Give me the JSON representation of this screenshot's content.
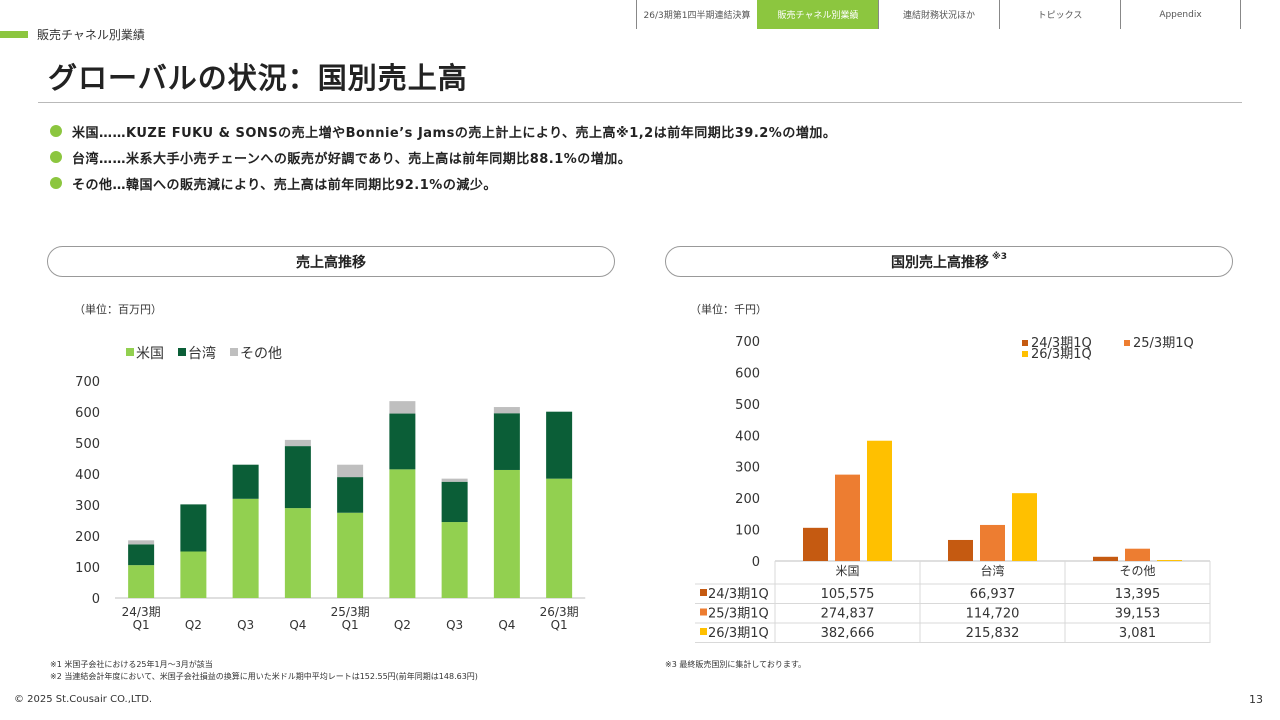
{
  "nav": {
    "tabs": [
      {
        "label": "26/3期第1四半期連結決算",
        "active": false
      },
      {
        "label": "販売チャネル別業績",
        "active": true
      },
      {
        "label": "連結財務状況ほか",
        "active": false
      },
      {
        "label": "トピックス",
        "active": false
      },
      {
        "label": "Appendix",
        "active": false
      }
    ]
  },
  "section_label": "販売チャネル別業績",
  "page_title": "グローバルの状況：国別売上高",
  "bullets": [
    "米国……KUZE FUKU & SONSの売上増やBonnie’s Jamsの売上計上により、売上高※1,2は前年同期比39.2%の増加。",
    "台湾……米系大手小売チェーンへの販売が好調であり、売上高は前年同期比88.1%の増加。",
    "その他…韓国への販売減により、売上高は前年同期比92.1%の減少。"
  ],
  "left_panel": {
    "title": "売上高推移",
    "unit": "（単位：百万円）"
  },
  "right_panel": {
    "title": "国別売上高推移",
    "title_note": "※3",
    "unit": "（単位：千円）"
  },
  "colors": {
    "accent": "#8cc63f",
    "us": "#92d050",
    "taiwan": "#0b5e37",
    "other": "#bfbfbf",
    "q24": "#c55a11",
    "q25": "#ed7d31",
    "q26": "#ffc000"
  },
  "chart_data": [
    {
      "type": "bar",
      "stacked": true,
      "categories": [
        [
          "24/3期",
          "Q1"
        ],
        [
          "",
          "Q2"
        ],
        [
          "",
          "Q3"
        ],
        [
          "",
          "Q4"
        ],
        [
          "25/3期",
          "Q1"
        ],
        [
          "",
          "Q2"
        ],
        [
          "",
          "Q3"
        ],
        [
          "",
          "Q4"
        ],
        [
          "26/3期",
          "Q1"
        ]
      ],
      "series": [
        {
          "name": "米国",
          "color": "#92d050",
          "values": [
            106,
            150,
            320,
            290,
            275,
            415,
            245,
            413,
            385
          ]
        },
        {
          "name": "台湾",
          "color": "#0b5e37",
          "values": [
            67,
            152,
            110,
            200,
            115,
            180,
            130,
            183,
            216
          ]
        },
        {
          "name": "その他",
          "color": "#bfbfbf",
          "values": [
            13,
            0,
            0,
            20,
            40,
            40,
            10,
            20,
            0
          ]
        }
      ],
      "ylim": [
        0,
        700
      ],
      "yticks": [
        0,
        100,
        200,
        300,
        400,
        500,
        600,
        700
      ],
      "legend_position": "top-left"
    },
    {
      "type": "bar",
      "categories": [
        "米国",
        "台湾",
        "その他"
      ],
      "series": [
        {
          "name": "24/3期1Q",
          "color": "#c55a11",
          "values": [
            105575,
            66937,
            13395
          ],
          "labels": [
            "105,575",
            "66,937",
            "13,395"
          ]
        },
        {
          "name": "25/3期1Q",
          "color": "#ed7d31",
          "values": [
            274837,
            114720,
            39153
          ],
          "labels": [
            "274,837",
            "114,720",
            "39,153"
          ]
        },
        {
          "name": "26/3期1Q",
          "color": "#ffc000",
          "values": [
            382666,
            215832,
            3081
          ],
          "labels": [
            "382,666",
            "215,832",
            "3,081"
          ]
        }
      ],
      "ylim": [
        0,
        700
      ],
      "yticks": [
        0,
        100,
        200,
        300,
        400,
        500,
        600,
        700
      ],
      "legend_position": "top-right",
      "has_data_table": true
    }
  ],
  "notes_left": [
    "※1  米国子会社における25年1月～3月が該当",
    "※2  当連結会計年度において、米国子会社損益の換算に用いた米ドル期中平均レートは152.55円(前年同期は148.63円)"
  ],
  "notes_right": [
    "※3  最終販売国別に集計しております。"
  ],
  "footer": {
    "copyright": "© 2025 St.Cousair CO.,LTD.",
    "page_number": "13"
  }
}
